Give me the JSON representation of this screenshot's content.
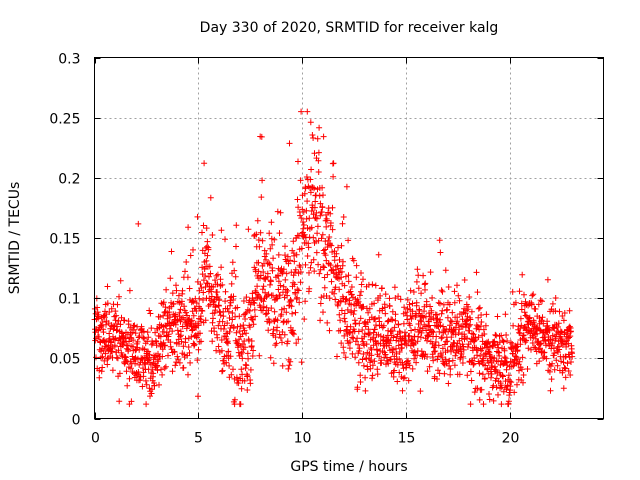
{
  "chart_data": {
    "type": "scatter",
    "title": "Day 330 of 2020, SRMTID for receiver kalg",
    "xlabel": "GPS time / hours",
    "ylabel": "SRMTID / TECUs",
    "xlim": [
      0,
      24.5
    ],
    "ylim": [
      0,
      0.3
    ],
    "x_ticks": [
      0,
      5,
      10,
      15,
      20
    ],
    "x_tick_labels": [
      "0",
      "5",
      "10",
      "15",
      "20"
    ],
    "y_ticks": [
      0,
      0.05,
      0.1,
      0.15,
      0.2,
      0.25,
      0.3
    ],
    "y_tick_labels": [
      "0",
      "0.05",
      "0.1",
      "0.15",
      "0.2",
      "0.25",
      "0.3"
    ],
    "grid": true,
    "marker": "+",
    "color": "#ff0000",
    "x_range_of_data": [
      0,
      23
    ],
    "n_points": 2200,
    "trend": [
      [
        0.0,
        0.068
      ],
      [
        0.5,
        0.07
      ],
      [
        1.0,
        0.066
      ],
      [
        1.5,
        0.06
      ],
      [
        2.0,
        0.052
      ],
      [
        2.5,
        0.048
      ],
      [
        3.0,
        0.05
      ],
      [
        3.5,
        0.07
      ],
      [
        4.0,
        0.078
      ],
      [
        4.5,
        0.072
      ],
      [
        5.0,
        0.085
      ],
      [
        5.3,
        0.12
      ],
      [
        5.6,
        0.11
      ],
      [
        6.0,
        0.082
      ],
      [
        6.5,
        0.08
      ],
      [
        7.0,
        0.06
      ],
      [
        7.3,
        0.052
      ],
      [
        7.7,
        0.095
      ],
      [
        8.0,
        0.115
      ],
      [
        8.5,
        0.105
      ],
      [
        9.0,
        0.09
      ],
      [
        9.5,
        0.1
      ],
      [
        10.0,
        0.14
      ],
      [
        10.5,
        0.175
      ],
      [
        11.0,
        0.16
      ],
      [
        11.5,
        0.12
      ],
      [
        12.0,
        0.09
      ],
      [
        12.5,
        0.078
      ],
      [
        13.0,
        0.075
      ],
      [
        13.5,
        0.07
      ],
      [
        14.0,
        0.068
      ],
      [
        14.5,
        0.064
      ],
      [
        15.0,
        0.066
      ],
      [
        15.5,
        0.072
      ],
      [
        16.0,
        0.076
      ],
      [
        16.5,
        0.07
      ],
      [
        17.0,
        0.068
      ],
      [
        17.5,
        0.074
      ],
      [
        18.0,
        0.066
      ],
      [
        18.5,
        0.058
      ],
      [
        19.0,
        0.048
      ],
      [
        19.5,
        0.042
      ],
      [
        20.0,
        0.04
      ],
      [
        20.5,
        0.068
      ],
      [
        21.0,
        0.078
      ],
      [
        21.5,
        0.07
      ],
      [
        22.0,
        0.066
      ],
      [
        22.5,
        0.064
      ],
      [
        23.0,
        0.06
      ]
    ],
    "spread": [
      [
        0.0,
        0.016
      ],
      [
        3.0,
        0.016
      ],
      [
        5.3,
        0.025
      ],
      [
        8.0,
        0.025
      ],
      [
        10.5,
        0.035
      ],
      [
        12.0,
        0.025
      ],
      [
        14.0,
        0.02
      ],
      [
        18.0,
        0.018
      ],
      [
        20.0,
        0.016
      ],
      [
        23.0,
        0.016
      ]
    ]
  }
}
